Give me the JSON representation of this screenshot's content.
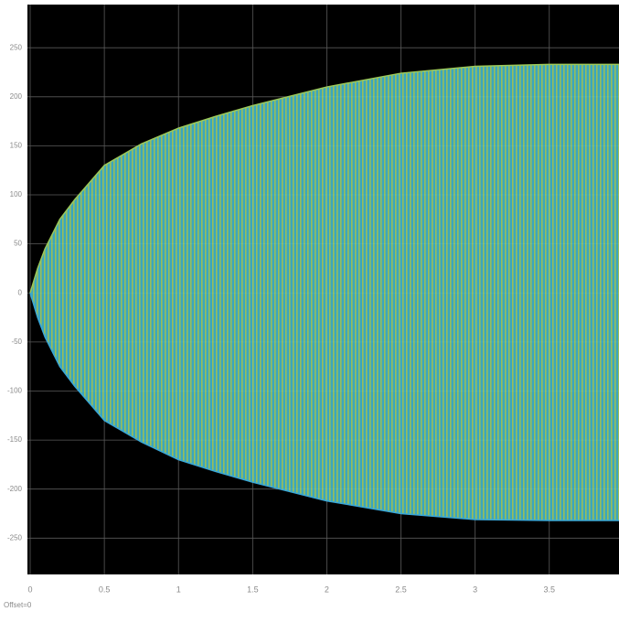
{
  "chart_data": {
    "type": "envelope",
    "x": [
      0,
      0.05,
      0.1,
      0.2,
      0.3,
      0.5,
      0.75,
      1,
      1.25,
      1.5,
      2,
      2.5,
      3,
      3.5,
      3.97
    ],
    "series": [
      {
        "color": "#9cc85a",
        "values": [
          0,
          25,
          45,
          75,
          95,
          130,
          152,
          168,
          180,
          191,
          210,
          224,
          231,
          233,
          233
        ]
      },
      {
        "color": "#3aa8d8",
        "values": [
          0,
          -25,
          -45,
          -75,
          -95,
          -130,
          -152,
          -170,
          -182,
          -193,
          -212,
          -225,
          -231,
          -232,
          -232
        ]
      }
    ],
    "xlim": [
      0,
      3.97
    ],
    "ylim": [
      -287,
      294
    ],
    "xticks": [
      0,
      0.5,
      1,
      1.5,
      2,
      2.5,
      3,
      3.5
    ],
    "yticks": [
      -250,
      -200,
      -150,
      -100,
      -50,
      0,
      50,
      100,
      150,
      200,
      250
    ],
    "grid": true,
    "footer": "Offset=0"
  }
}
